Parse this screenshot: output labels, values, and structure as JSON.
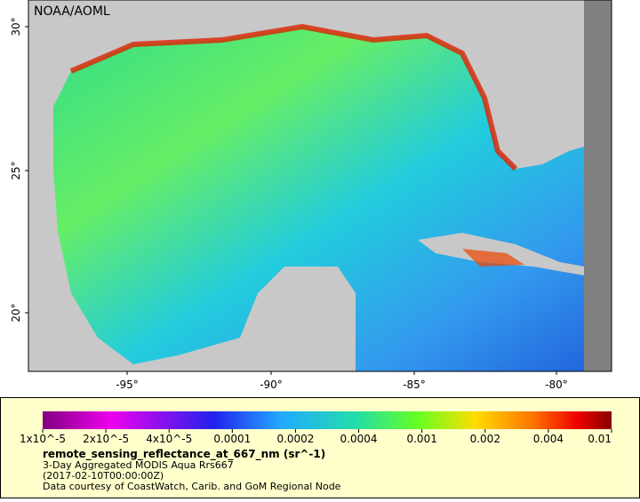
{
  "map": {
    "credit": "NOAA/AOML",
    "lat_ticks": [
      "30°",
      "25°",
      "20°"
    ],
    "lon_ticks": [
      "-95°",
      "-90°",
      "-85°",
      "-80°"
    ]
  },
  "legend": {
    "scale_labels": [
      "1x10^-5",
      "2x10^-5",
      "4x10^-5",
      "0.0001",
      "0.0002",
      "0.0004",
      "0.001",
      "0.002",
      "0.004",
      "0.01"
    ],
    "variable": "remote_sensing_reflectance_at_667_nm (sr^-1)",
    "title": "3-Day Aggregated MODIS Aqua Rrs667",
    "time": "(2017-02-10T00:00:00Z)",
    "source": "Data courtesy of CoastWatch, Carib. and GoM Regional Node"
  }
}
